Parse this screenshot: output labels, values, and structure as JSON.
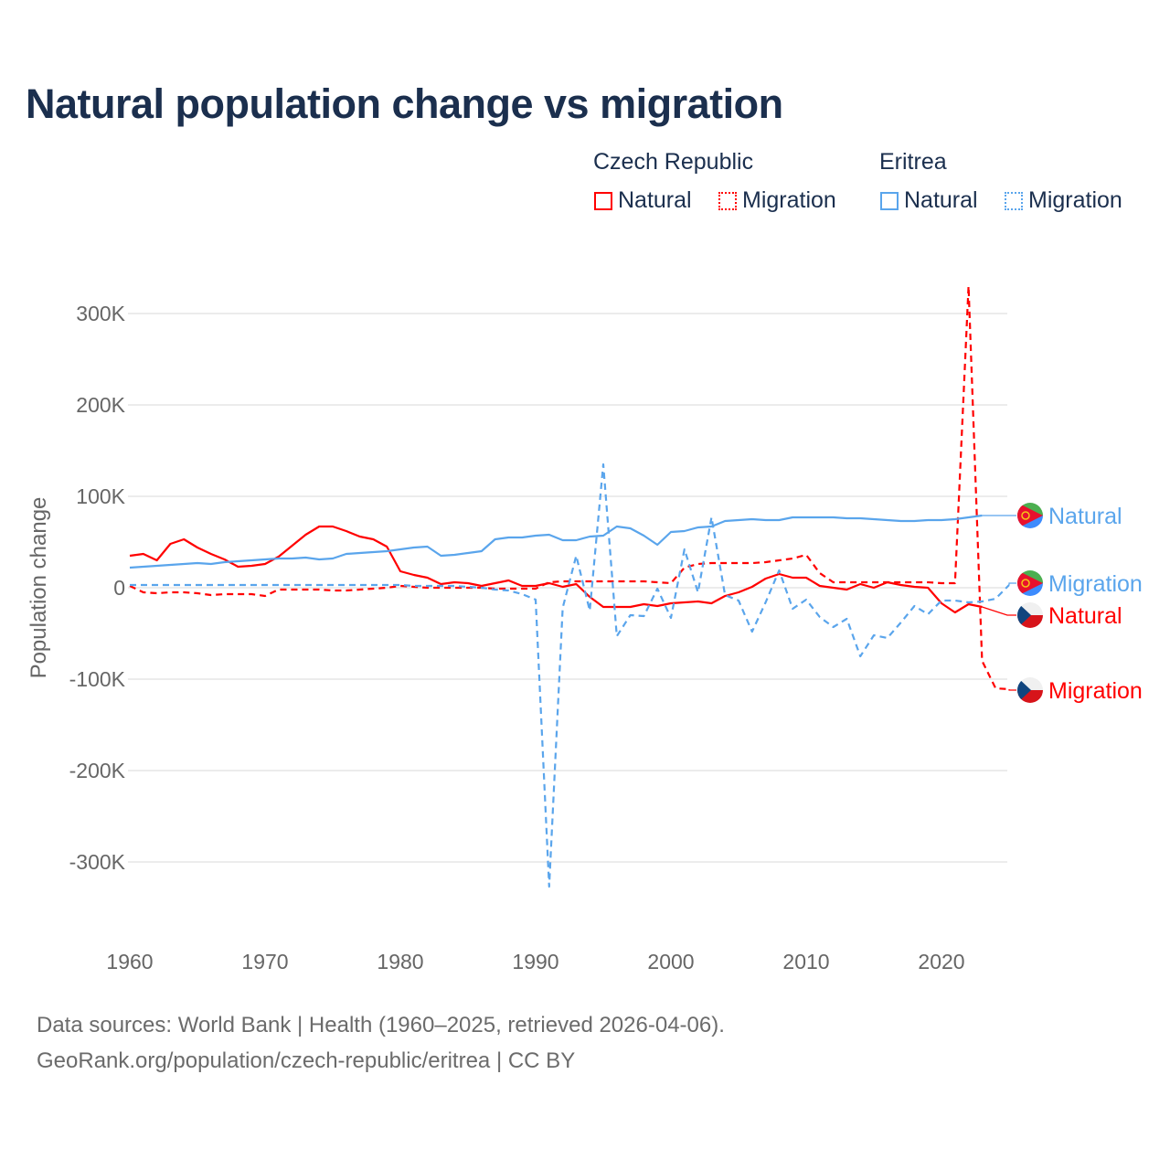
{
  "title": "Natural population change vs migration",
  "legend": {
    "groups": [
      {
        "name": "Czech Republic",
        "color": "#ff0000",
        "items": [
          "Natural",
          "Migration"
        ]
      },
      {
        "name": "Eritrea",
        "color": "#5aa5ec",
        "items": [
          "Natural",
          "Migration"
        ]
      }
    ]
  },
  "footer": {
    "line1": "Data sources: World Bank | Health (1960–2025, retrieved 2026-04-06).",
    "line2": "GeoRank.org/population/czech-republic/eritrea | CC BY"
  },
  "chart_data": {
    "type": "line",
    "title": "Natural population change vs migration",
    "xlabel": "",
    "ylabel": "Population change",
    "xlim": [
      1960,
      2025
    ],
    "ylim": [
      -350000,
      350000
    ],
    "x_ticks": [
      "1960",
      "1970",
      "1980",
      "1990",
      "2000",
      "2010",
      "2020"
    ],
    "y_ticks": [
      {
        "value": 300000,
        "label": "300K"
      },
      {
        "value": 200000,
        "label": "200K"
      },
      {
        "value": 100000,
        "label": "100K"
      },
      {
        "value": 0,
        "label": "0"
      },
      {
        "value": -100000,
        "label": "-100K"
      },
      {
        "value": -200000,
        "label": "-200K"
      },
      {
        "value": -300000,
        "label": "-300K"
      }
    ],
    "grid": true,
    "series": [
      {
        "name": "Czech Republic Natural",
        "end_label": "Natural",
        "country": "Czech Republic",
        "color": "#ff0000",
        "dash": false,
        "start_year": 1960,
        "unit": 1000,
        "values": [
          35,
          37,
          30,
          48,
          53,
          44,
          37,
          31,
          23,
          24,
          26,
          34,
          46,
          58,
          67,
          67,
          62,
          56,
          53,
          45,
          18,
          14,
          11,
          4,
          6,
          5,
          2,
          5,
          8,
          2,
          2,
          5,
          1,
          4,
          -10,
          -21,
          -21,
          -21,
          -18,
          -20,
          -17,
          -16,
          -15,
          -17,
          -9,
          -5,
          1,
          10,
          15,
          11,
          11,
          2,
          0,
          -2,
          4,
          0,
          6,
          3,
          1,
          0,
          -17,
          -27,
          -18,
          -21
        ]
      },
      {
        "name": "Czech Republic Migration",
        "end_label": "Migration",
        "country": "Czech Republic",
        "color": "#ff0000",
        "dash": true,
        "start_year": 1960,
        "unit": 1000,
        "values": [
          2,
          -5,
          -6,
          -5,
          -5,
          -6,
          -8,
          -7,
          -7,
          -7,
          -9,
          -2,
          -2,
          -2,
          -2,
          -3,
          -3,
          -2,
          -1,
          0,
          2,
          1,
          0,
          0,
          0,
          0,
          0,
          -1,
          -1,
          -1,
          -1,
          6,
          7,
          7,
          7,
          7,
          7,
          7,
          7,
          6,
          5,
          22,
          26,
          27,
          27,
          27,
          27,
          28,
          30,
          32,
          36,
          16,
          6,
          6,
          6,
          6,
          6,
          6,
          6,
          6,
          5,
          5,
          330,
          -80,
          -110,
          -111
        ]
      },
      {
        "name": "Eritrea Natural",
        "end_label": "Natural",
        "country": "Eritrea",
        "color": "#5aa5ec",
        "dash": false,
        "start_year": 1960,
        "unit": 1000,
        "values": [
          22,
          23,
          24,
          25,
          26,
          27,
          26,
          28,
          29,
          30,
          31,
          32,
          32,
          33,
          31,
          32,
          37,
          38,
          39,
          40,
          42,
          44,
          45,
          35,
          36,
          38,
          40,
          53,
          55,
          55,
          57,
          58,
          52,
          52,
          56,
          57,
          67,
          65,
          57,
          47,
          61,
          62,
          66,
          67,
          73,
          74,
          75,
          74,
          74,
          77,
          77,
          77,
          77,
          76,
          76,
          75,
          74,
          73,
          73,
          74,
          74,
          75,
          77,
          79
        ]
      },
      {
        "name": "Eritrea Migration",
        "end_label": "Migration",
        "country": "Eritrea",
        "color": "#5aa5ec",
        "dash": true,
        "start_year": 1960,
        "unit": 1000,
        "values": [
          3,
          3,
          3,
          3,
          3,
          3,
          3,
          3,
          3,
          3,
          3,
          3,
          3,
          3,
          3,
          3,
          3,
          3,
          3,
          3,
          3,
          2,
          2,
          2,
          2,
          1,
          0,
          -2,
          -3,
          -7,
          -13,
          -327,
          -22,
          35,
          -25,
          135,
          -53,
          -30,
          -31,
          -1,
          -33,
          42,
          -5,
          77,
          -8,
          -14,
          -48,
          -16,
          19,
          -23,
          -13,
          -32,
          -43,
          -34,
          -75,
          -52,
          -55,
          -38,
          -20,
          -29,
          -14,
          -14,
          -16,
          -15,
          -12,
          3
        ]
      }
    ]
  }
}
